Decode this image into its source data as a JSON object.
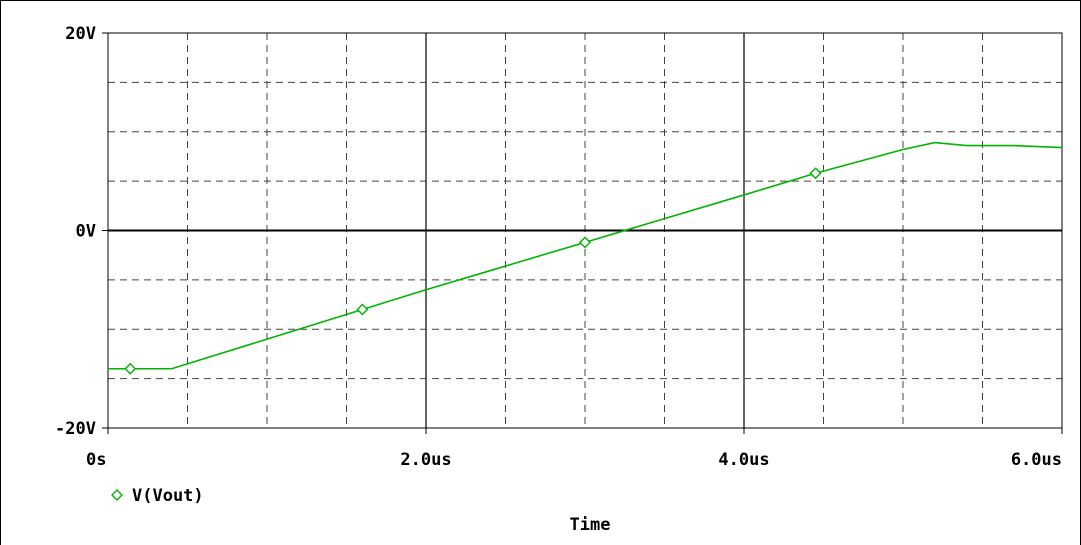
{
  "chart_data": {
    "type": "line",
    "title": "",
    "xlabel": "Time",
    "ylabel": "",
    "xlim": [
      0,
      6.0
    ],
    "ylim": [
      -20,
      20
    ],
    "x_unit": "us",
    "y_unit": "V",
    "x_ticks": [
      {
        "value": 0,
        "label": "0s"
      },
      {
        "value": 2.0,
        "label": "2.0us"
      },
      {
        "value": 4.0,
        "label": "4.0us"
      },
      {
        "value": 6.0,
        "label": "6.0us"
      }
    ],
    "y_ticks": [
      {
        "value": 20,
        "label": "20V"
      },
      {
        "value": 0,
        "label": "0V"
      },
      {
        "value": -20,
        "label": "-20V"
      }
    ],
    "grid": true,
    "legend_position": "bottom-left",
    "series": [
      {
        "name": "V(Vout)",
        "color": "#00b400",
        "marker": "diamond",
        "x": [
          0.0,
          0.4,
          1.0,
          1.6,
          2.0,
          2.5,
          3.0,
          3.5,
          4.0,
          4.45,
          5.0,
          5.2,
          5.4,
          5.7,
          6.0
        ],
        "y": [
          -14.0,
          -14.0,
          -11.0,
          -8.0,
          -6.0,
          -3.6,
          -1.2,
          1.2,
          3.6,
          5.8,
          8.2,
          8.9,
          8.6,
          8.6,
          8.4
        ],
        "marker_x": [
          0.14,
          1.6,
          3.0,
          4.45
        ]
      }
    ]
  }
}
